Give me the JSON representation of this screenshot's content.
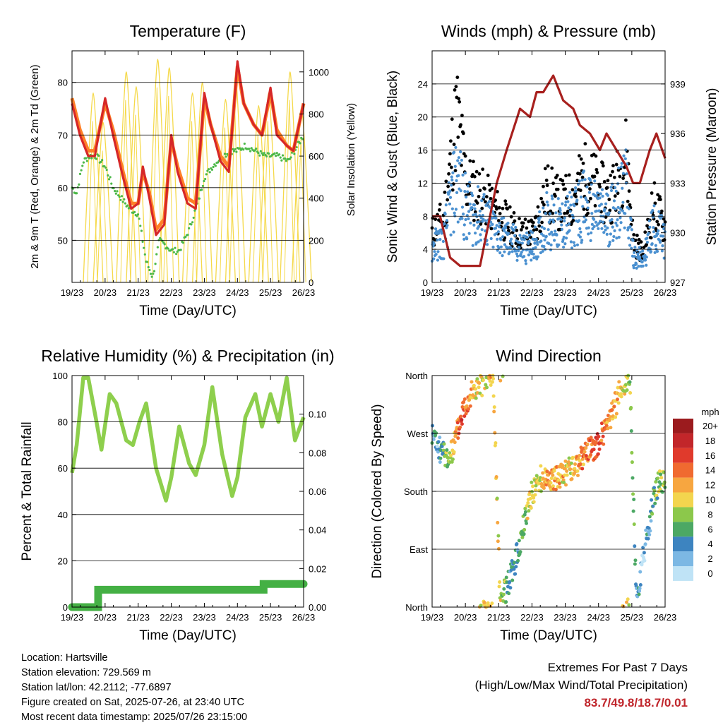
{
  "x_ticks": [
    "19/23",
    "20/23",
    "21/23",
    "22/23",
    "23/23",
    "24/23",
    "25/23",
    "26/23"
  ],
  "x_label": "Time (Day/UTC)",
  "colors": {
    "temp2m": "#d62728",
    "temp9m": "#ff7f27",
    "dewpoint": "#4cb848",
    "solar": "#f5d94a",
    "wind": "#4a90d0",
    "gust": "#000000",
    "pressure": "#a8201e",
    "rh": "#8ecf4d",
    "precip": "#44b044"
  },
  "panels": {
    "temperature": {
      "title": "Temperature (F)",
      "ylabel": "2m & 9m T (Red, Orange) & 2m Td (Green)",
      "y2label": "Solar Insolation (Yellow)",
      "y_ticks": [
        "50",
        "60",
        "70",
        "80"
      ],
      "y2_ticks": [
        "0",
        "200",
        "400",
        "600",
        "800",
        "1000"
      ]
    },
    "winds": {
      "title": "Winds (mph) & Pressure (mb)",
      "ylabel": "Sonic Wind & Gust (Blue, Black)",
      "y2label": "Station Pressure (Maroon)",
      "y_ticks": [
        "0",
        "4",
        "8",
        "12",
        "16",
        "20",
        "24"
      ],
      "y2_ticks": [
        "927",
        "930",
        "933",
        "936",
        "939"
      ]
    },
    "humidity": {
      "title": "Relative Humidity (%) & Precipitation (in)",
      "ylabel": "Percent & Total Rainfall",
      "y_ticks": [
        "0",
        "20",
        "40",
        "60",
        "80",
        "100"
      ],
      "y2_ticks": [
        "0.00",
        "0.02",
        "0.04",
        "0.06",
        "0.08",
        "0.10"
      ]
    },
    "direction": {
      "title": "Wind Direction",
      "ylabel": "Direction (Colored By Speed)",
      "y_ticks": [
        "North",
        "East",
        "South",
        "West",
        "North"
      ],
      "legend_title": "mph",
      "legend_labels": [
        "20+",
        "18",
        "16",
        "14",
        "12",
        "10",
        "8",
        "6",
        "4",
        "2",
        "0"
      ],
      "legend_colors": [
        "#9b1b1e",
        "#c2262a",
        "#e03a2c",
        "#f06a30",
        "#f7a640",
        "#f3d54e",
        "#8cc84b",
        "#4ca864",
        "#3d84c0",
        "#7cb8e4",
        "#bfe3f6"
      ]
    }
  },
  "chart_data": [
    {
      "type": "line",
      "title": "Temperature (F)",
      "xlabel": "Time (Day/UTC)",
      "ylabel": "2m & 9m T (Red, Orange) & 2m Td (Green)",
      "y2label": "Solar Insolation (Yellow)",
      "x_day_range": [
        19.96,
        26.96
      ],
      "ylim": [
        42,
        86
      ],
      "y2lim": [
        0,
        1100
      ],
      "series": [
        {
          "x": [
            19.96,
            20.2,
            20.45,
            20.65,
            20.96,
            21.2,
            21.5,
            21.75,
            21.96,
            22.1,
            22.3,
            22.5,
            22.75,
            22.96,
            23.15,
            23.45,
            23.7,
            23.96,
            24.15,
            24.45,
            24.7,
            24.96,
            25.15,
            25.45,
            25.7,
            25.96,
            26.15,
            26.45,
            26.65,
            26.96
          ],
          "y": [
            76,
            70,
            66,
            66,
            77,
            70,
            62,
            56,
            57,
            64,
            58,
            51,
            53,
            70,
            63,
            57,
            56,
            78,
            72,
            65,
            63,
            84,
            76,
            72,
            70,
            79,
            70,
            68,
            67,
            76
          ]
        },
        {
          "x": [
            19.96,
            20.2,
            20.45,
            20.65,
            20.96,
            21.2,
            21.5,
            21.75,
            21.96,
            22.1,
            22.3,
            22.5,
            22.75,
            22.96,
            23.15,
            23.45,
            23.7,
            23.96,
            24.15,
            24.45,
            24.7,
            24.96,
            25.15,
            25.45,
            25.7,
            25.96,
            26.15,
            26.45,
            26.65,
            26.96
          ],
          "y": [
            77,
            71,
            67,
            67,
            76,
            71,
            63,
            57,
            57,
            63,
            59,
            52,
            54,
            69,
            64,
            58,
            57,
            77,
            72,
            66,
            64,
            83,
            76,
            72,
            70,
            78,
            71,
            68,
            67,
            76
          ]
        },
        {
          "x": [
            19.96,
            20.1,
            20.3,
            20.5,
            20.7,
            20.96,
            21.2,
            21.45,
            21.7,
            21.96,
            22.2,
            22.4,
            22.6,
            22.8,
            22.96,
            23.2,
            23.5,
            23.8,
            23.96,
            24.2,
            24.5,
            24.8,
            24.96,
            25.2,
            25.5,
            25.8,
            25.96,
            26.2,
            26.5,
            26.96
          ],
          "y": [
            60,
            59,
            65,
            66,
            66,
            64,
            60,
            58,
            56,
            55,
            46,
            43,
            50,
            49,
            48,
            48,
            52,
            58,
            62,
            64,
            66,
            67,
            67,
            68,
            67,
            66,
            66,
            66,
            65,
            70
          ]
        },
        {
          "type": "bars",
          "axis": "y2",
          "x": [
            20.6,
            20.9,
            21.6,
            21.9,
            22.55,
            22.9,
            23.6,
            23.9,
            24.6,
            24.9,
            25.6,
            25.9,
            26.55,
            26.9
          ],
          "y": [
            900,
            760,
            1000,
            930,
            1060,
            1020,
            900,
            950,
            870,
            980,
            840,
            900,
            1000,
            820
          ]
        }
      ]
    },
    {
      "type": "scatter",
      "title": "Winds (mph) & Pressure (mb)",
      "xlabel": "Time (Day/UTC)",
      "ylabel": "Sonic Wind & Gust (Blue, Black)",
      "y2label": "Station Pressure (Maroon)",
      "x_day_range": [
        19.96,
        26.96
      ],
      "ylim": [
        0,
        28
      ],
      "y2lim": [
        927,
        941
      ],
      "series": [
        {
          "x": [
            19.96,
            20.3,
            20.7,
            21.0,
            21.5,
            21.9,
            22.3,
            22.6,
            23.0,
            23.4,
            23.8,
            24.2,
            24.5,
            24.8,
            25.2,
            25.5,
            25.8,
            26.0,
            26.3,
            26.6,
            26.96
          ],
          "y": [
            5,
            6,
            15,
            10,
            9,
            7,
            6,
            5,
            5,
            9,
            8,
            9,
            11,
            10,
            9,
            11,
            13,
            4,
            3,
            8,
            6
          ]
        },
        {
          "x": [
            19.96,
            20.3,
            20.7,
            21.0,
            21.5,
            21.9,
            22.3,
            22.6,
            23.0,
            23.4,
            23.8,
            24.2,
            24.5,
            24.8,
            25.2,
            25.5,
            25.8,
            26.0,
            26.3,
            26.6,
            26.96
          ],
          "y": [
            7,
            9,
            24,
            14,
            12,
            10,
            8,
            7,
            7,
            13,
            11,
            12,
            15,
            14,
            12,
            14,
            18,
            6,
            4,
            11,
            8
          ]
        },
        {
          "type": "line",
          "axis": "y2",
          "x": [
            19.96,
            20.2,
            20.5,
            20.8,
            21.4,
            21.6,
            21.9,
            22.2,
            22.6,
            22.9,
            23.1,
            23.3,
            23.6,
            23.9,
            24.2,
            24.4,
            24.7,
            25.0,
            25.2,
            25.5,
            25.8,
            26.0,
            26.2,
            26.5,
            26.7,
            26.96
          ],
          "y": [
            931,
            931,
            928.5,
            928,
            928,
            930,
            933,
            935,
            937.5,
            937,
            938.5,
            938.5,
            939.5,
            938,
            937.5,
            936.5,
            936,
            935,
            936,
            935,
            934,
            933,
            933,
            935,
            936,
            934.5
          ]
        }
      ]
    },
    {
      "type": "line",
      "title": "Relative Humidity (%) & Precipitation (in)",
      "xlabel": "Time (Day/UTC)",
      "ylabel": "Percent & Total Rainfall",
      "x_day_range": [
        19.96,
        26.96
      ],
      "ylim": [
        0,
        100
      ],
      "y2lim": [
        0,
        0.12
      ],
      "series": [
        {
          "x": [
            19.96,
            20.1,
            20.3,
            20.45,
            20.7,
            20.85,
            21.1,
            21.3,
            21.6,
            21.8,
            22.0,
            22.2,
            22.5,
            22.8,
            22.96,
            23.2,
            23.5,
            23.7,
            23.96,
            24.2,
            24.5,
            24.8,
            24.96,
            25.2,
            25.5,
            25.7,
            25.96,
            26.2,
            26.45,
            26.7,
            26.96
          ],
          "y": [
            58,
            70,
            99,
            99,
            80,
            68,
            92,
            88,
            72,
            70,
            80,
            88,
            60,
            46,
            56,
            78,
            62,
            57,
            70,
            95,
            66,
            48,
            56,
            82,
            92,
            78,
            92,
            80,
            99,
            72,
            82
          ]
        },
        {
          "axis": "y2",
          "step": true,
          "x": [
            19.96,
            20.75,
            20.75,
            25.75,
            25.75,
            26.96
          ],
          "y": [
            0,
            0,
            0.009,
            0.009,
            0.012,
            0.012
          ]
        }
      ]
    },
    {
      "type": "scatter",
      "title": "Wind Direction",
      "xlabel": "Time (Day/UTC)",
      "ylabel": "Direction (Colored By Speed)",
      "x_day_range": [
        19.96,
        26.96
      ],
      "ylim": [
        0,
        360
      ],
      "series": [
        {
          "x": [
            19.96,
            20.1,
            20.3,
            20.5,
            20.7,
            20.9,
            21.1,
            21.3,
            21.6,
            21.8,
            22.0,
            22.2,
            22.4,
            22.6,
            22.9,
            23.2,
            23.5,
            23.8,
            24.0,
            24.3,
            24.6,
            24.9,
            25.1,
            25.3,
            25.5,
            25.7,
            25.9,
            26.1,
            26.3,
            26.5,
            26.6,
            26.8,
            26.96
          ],
          "y": [
            270,
            250,
            240,
            230,
            270,
            310,
            330,
            340,
            355,
            355,
            10,
            30,
            60,
            100,
            170,
            200,
            200,
            200,
            210,
            220,
            240,
            250,
            270,
            290,
            320,
            350,
            355,
            10,
            80,
            130,
            170,
            200,
            190
          ],
          "speed": [
            4,
            3,
            6,
            8,
            14,
            16,
            12,
            10,
            10,
            12,
            10,
            6,
            4,
            6,
            10,
            10,
            12,
            12,
            10,
            12,
            14,
            16,
            14,
            12,
            12,
            10,
            8,
            4,
            2,
            4,
            6,
            8,
            8
          ]
        }
      ]
    }
  ],
  "info": {
    "location": "Location: Hartsville",
    "elevation": "Station elevation: 729.569 m",
    "latlon": "Station lat/lon: 42.2112; -77.6897",
    "created": "Figure created on Sat, 2025-07-26, at 23:40 UTC",
    "recent": "Most recent data timestamp: 2025/07/26 23:15:00"
  },
  "extremes": {
    "title": "Extremes For Past 7 Days",
    "subtitle": "(High/Low/Max Wind/Total Precipitation)",
    "values": "83.7/49.8/18.7/0.01"
  }
}
